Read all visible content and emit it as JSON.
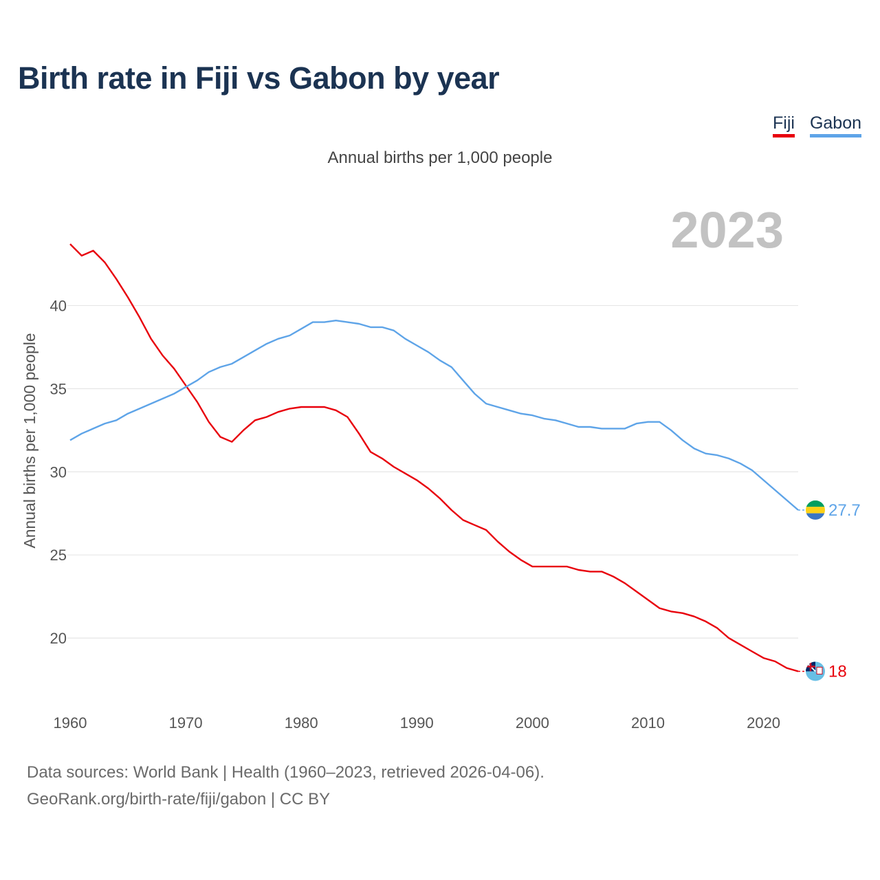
{
  "title": "Birth rate in Fiji vs Gabon by year",
  "legend": {
    "fiji": "Fiji",
    "gabon": "Gabon"
  },
  "subtitle": "Annual births per 1,000 people",
  "footer": {
    "line1": "Data sources: World Bank | Health (1960–2023, retrieved 2026-04-06).",
    "line2": "GeoRank.org/birth-rate/fiji/gabon | CC BY"
  },
  "colors": {
    "fiji": "#e8000b",
    "gabon": "#5ea4e8",
    "grid": "#e6e6e6",
    "axis_text": "#555555",
    "year_watermark": "#c2c2c2"
  },
  "chart_data": {
    "type": "line",
    "title": "Birth rate in Fiji vs Gabon by year",
    "ylabel": "Annual births per 1,000 people",
    "xlabel": "",
    "current_year_label": "2023",
    "xlim": [
      1960,
      2023
    ],
    "ylim": [
      16.2,
      46.8
    ],
    "x_ticks": [
      1960,
      1970,
      1980,
      1990,
      2000,
      2010,
      2020
    ],
    "y_ticks": [
      20,
      25,
      30,
      35,
      40
    ],
    "grid": true,
    "x": [
      1960,
      1961,
      1962,
      1963,
      1964,
      1965,
      1966,
      1967,
      1968,
      1969,
      1970,
      1971,
      1972,
      1973,
      1974,
      1975,
      1976,
      1977,
      1978,
      1979,
      1980,
      1981,
      1982,
      1983,
      1984,
      1985,
      1986,
      1987,
      1988,
      1989,
      1990,
      1991,
      1992,
      1993,
      1994,
      1995,
      1996,
      1997,
      1998,
      1999,
      2000,
      2001,
      2002,
      2003,
      2004,
      2005,
      2006,
      2007,
      2008,
      2009,
      2010,
      2011,
      2012,
      2013,
      2014,
      2015,
      2016,
      2017,
      2018,
      2019,
      2020,
      2021,
      2022,
      2023
    ],
    "series": [
      {
        "name": "Fiji",
        "color": "#e8000b",
        "end_label": "18",
        "flag": "fiji-flag-icon",
        "values": [
          43.7,
          43.0,
          43.3,
          42.6,
          41.6,
          40.5,
          39.3,
          38.0,
          37.0,
          36.2,
          35.2,
          34.2,
          33.0,
          32.1,
          31.8,
          32.5,
          33.1,
          33.3,
          33.6,
          33.8,
          33.9,
          33.9,
          33.9,
          33.7,
          33.3,
          32.3,
          31.2,
          30.8,
          30.3,
          29.9,
          29.5,
          29.0,
          28.4,
          27.7,
          27.1,
          26.8,
          26.5,
          25.8,
          25.2,
          24.7,
          24.3,
          24.3,
          24.3,
          24.3,
          24.1,
          24.0,
          24.0,
          23.7,
          23.3,
          22.8,
          22.3,
          21.8,
          21.6,
          21.5,
          21.3,
          21.0,
          20.6,
          20.0,
          19.6,
          19.2,
          18.8,
          18.6,
          18.2,
          18.0
        ]
      },
      {
        "name": "Gabon",
        "color": "#5ea4e8",
        "end_label": "27.7",
        "flag": "gabon-flag-icon",
        "values": [
          31.9,
          32.3,
          32.6,
          32.9,
          33.1,
          33.5,
          33.8,
          34.1,
          34.4,
          34.7,
          35.1,
          35.5,
          36.0,
          36.3,
          36.5,
          36.9,
          37.3,
          37.7,
          38.0,
          38.2,
          38.6,
          39.0,
          39.0,
          39.1,
          39.0,
          38.9,
          38.7,
          38.7,
          38.5,
          38.0,
          37.6,
          37.2,
          36.7,
          36.3,
          35.5,
          34.7,
          34.1,
          33.9,
          33.7,
          33.5,
          33.4,
          33.2,
          33.1,
          32.9,
          32.7,
          32.7,
          32.6,
          32.6,
          32.6,
          32.9,
          33.0,
          33.0,
          32.5,
          31.9,
          31.4,
          31.1,
          31.0,
          30.8,
          30.5,
          30.1,
          29.5,
          28.9,
          28.3,
          27.7
        ]
      }
    ]
  }
}
